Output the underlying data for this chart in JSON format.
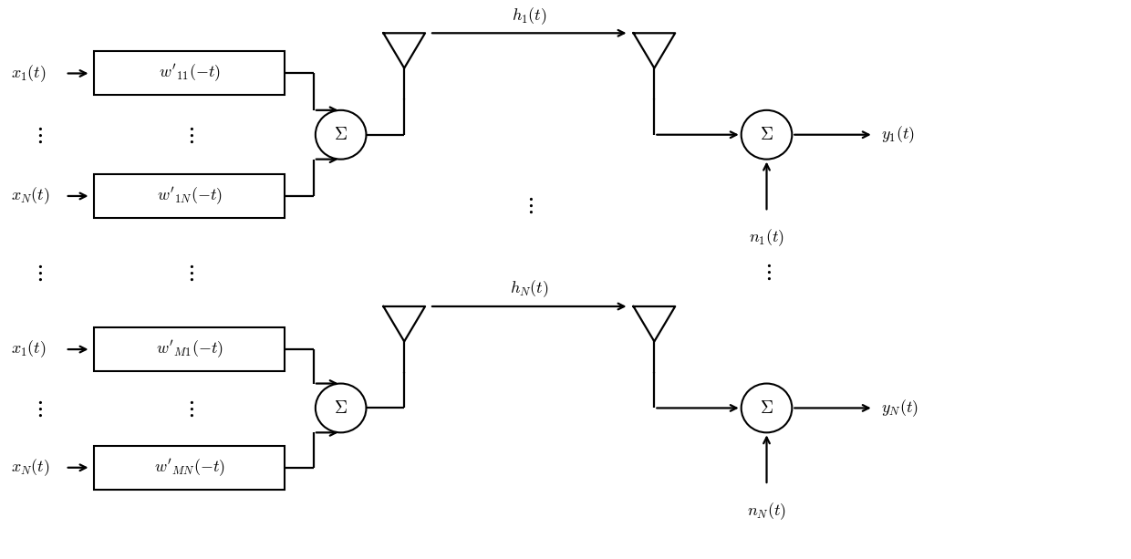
{
  "bg_color": "#ffffff",
  "line_color": "#000000",
  "fig_width": 12.4,
  "fig_height": 6.13,
  "dpi": 100
}
